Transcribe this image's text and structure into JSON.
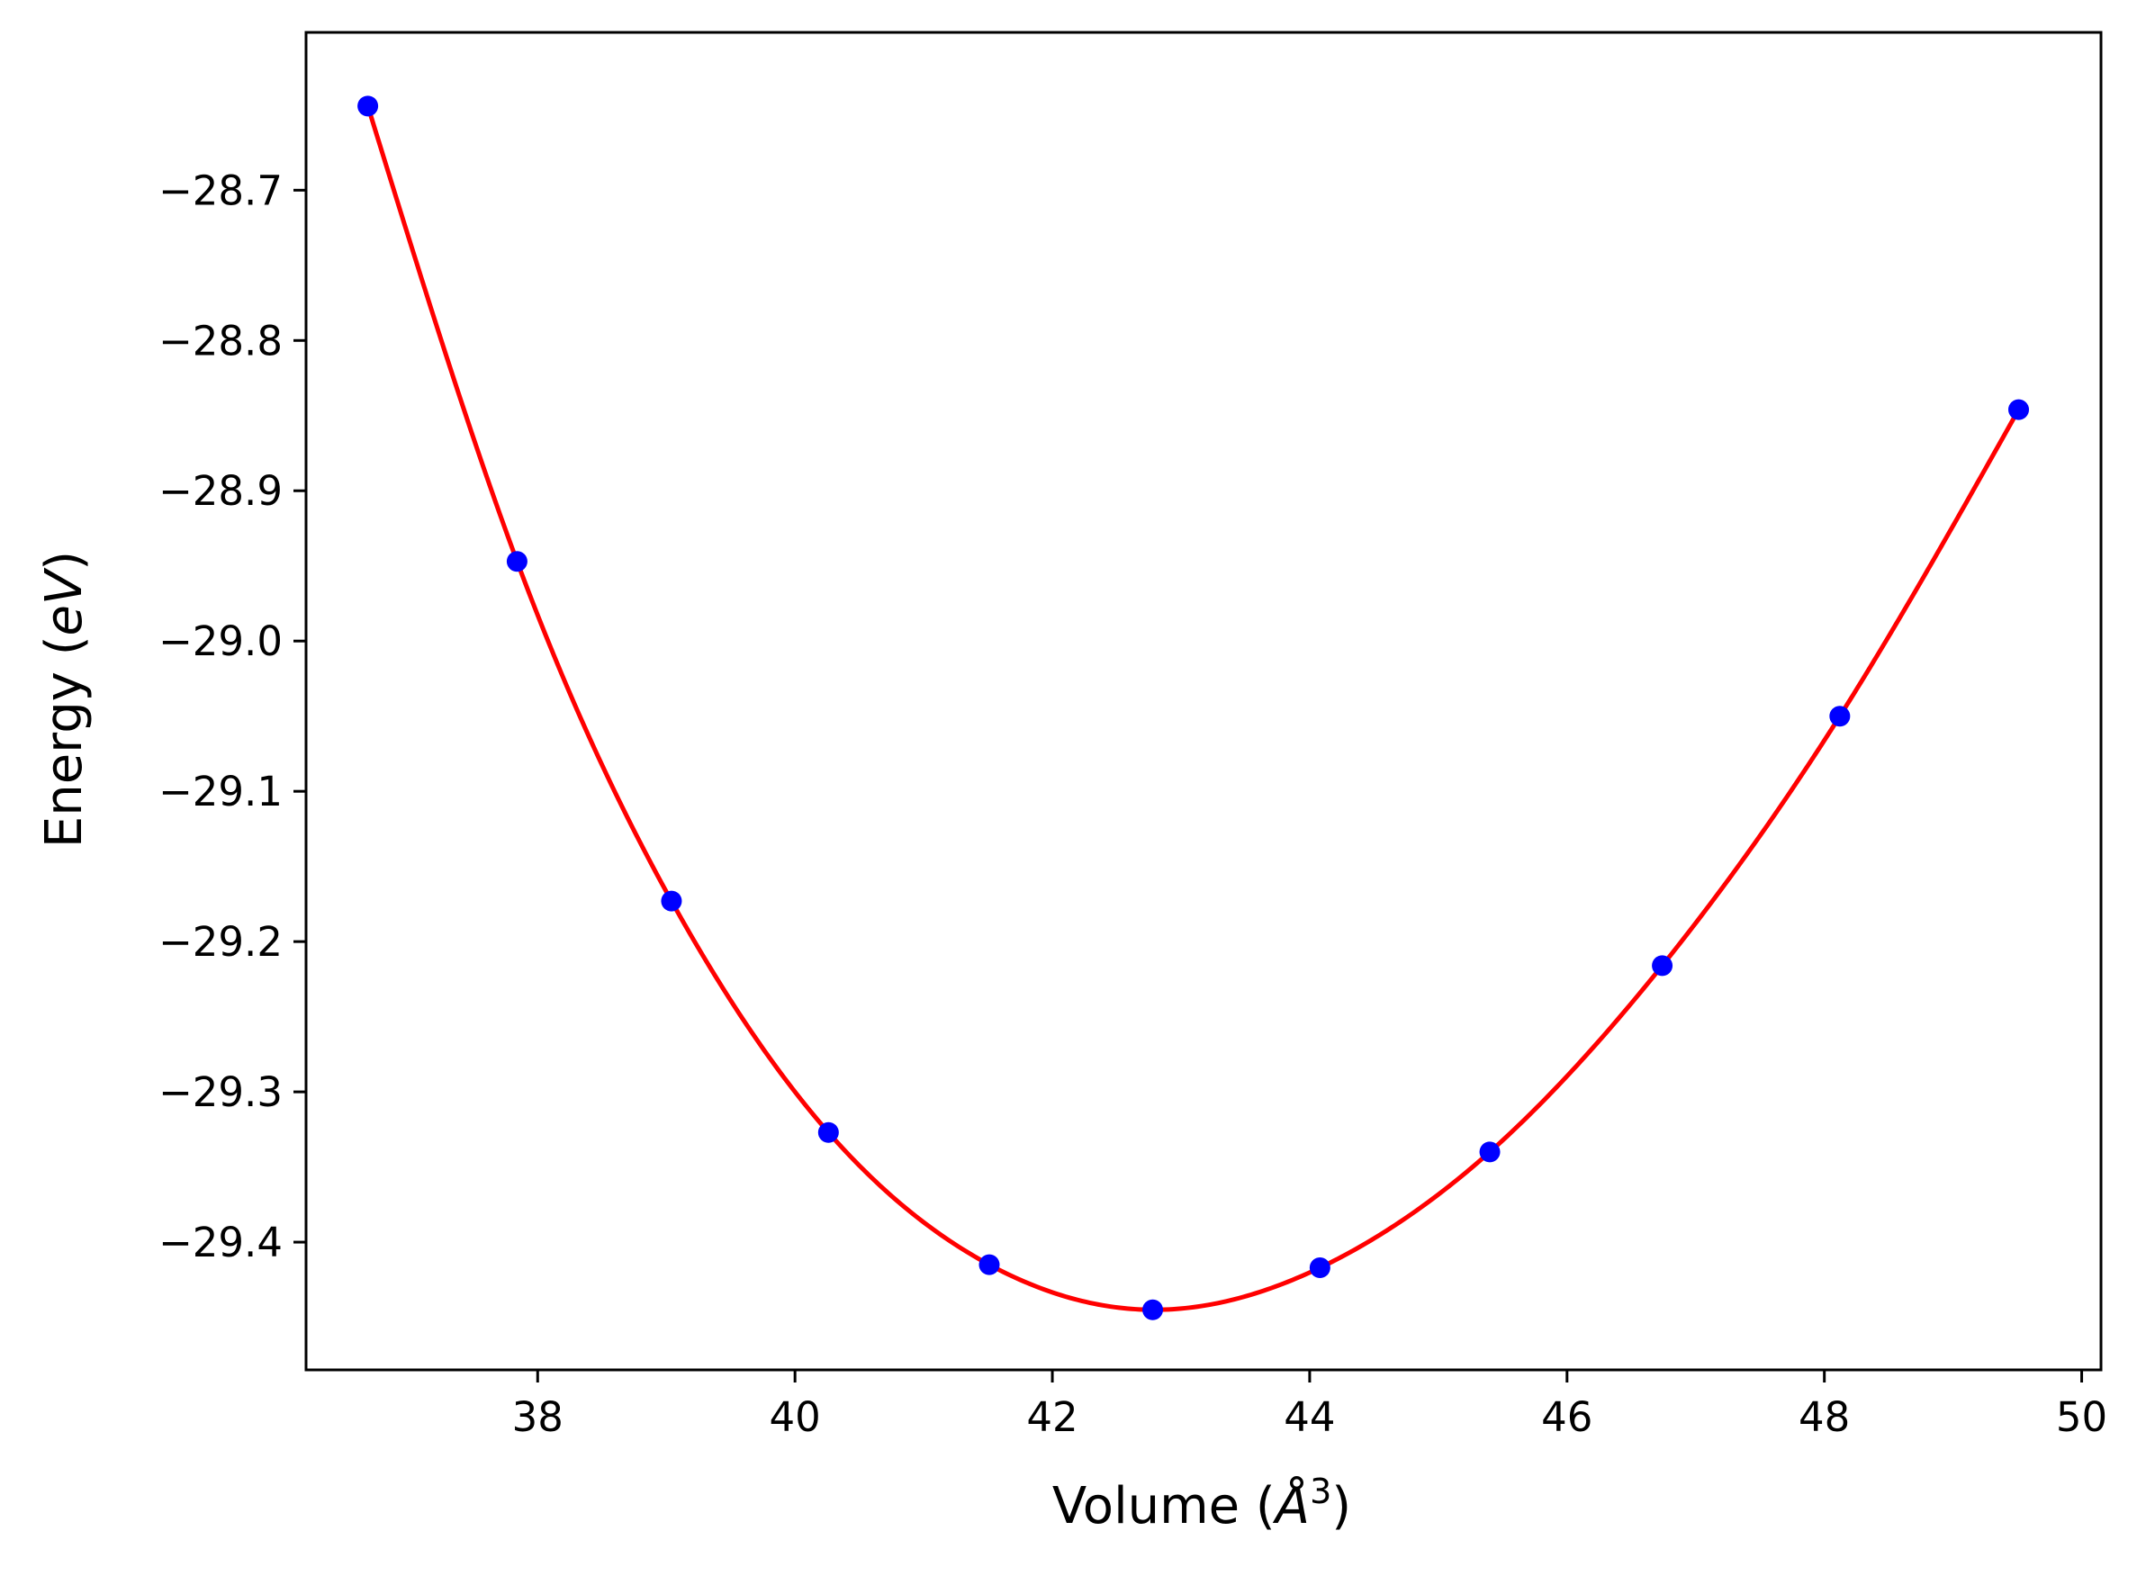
{
  "chart_data": {
    "type": "scatter",
    "title": "",
    "xlabel": "Volume (Å³)",
    "xlabel_parts": {
      "prefix": "Volume (",
      "symbol": "Å",
      "exponent": "3",
      "suffix": ")"
    },
    "ylabel": "Energy (eV)",
    "ylabel_parts": {
      "prefix": "Energy (",
      "unit": "eV",
      "suffix": ")"
    },
    "xlim": [
      36.2,
      50.15
    ],
    "ylim": [
      -29.485,
      -28.595
    ],
    "xticks": [
      38,
      40,
      42,
      44,
      46,
      48,
      50
    ],
    "xtick_labels": [
      "38",
      "40",
      "42",
      "44",
      "46",
      "48",
      "50"
    ],
    "yticks": [
      -28.7,
      -28.8,
      -28.9,
      -29.0,
      -29.1,
      -29.2,
      -29.3,
      -29.4
    ],
    "ytick_labels": [
      "−28.7",
      "−28.8",
      "−28.9",
      "−29.0",
      "−29.1",
      "−29.2",
      "−29.3",
      "−29.4"
    ],
    "grid": false,
    "legend": "none",
    "series": [
      {
        "kind": "points",
        "color": "#0000ff",
        "x": [
          36.68,
          37.84,
          39.04,
          40.26,
          41.51,
          42.78,
          44.08,
          45.4,
          46.74,
          48.12,
          49.51
        ],
        "y": [
          -28.644,
          -28.947,
          -29.173,
          -29.327,
          -29.415,
          -29.445,
          -29.417,
          -29.34,
          -29.216,
          -29.05,
          -28.846
        ]
      },
      {
        "kind": "fit_curve",
        "color": "#ff0000",
        "x": [
          36.68,
          37.84,
          39.04,
          40.26,
          41.51,
          42.78,
          44.08,
          45.4,
          46.74,
          48.12,
          49.51
        ],
        "y": [
          -28.644,
          -28.947,
          -29.173,
          -29.327,
          -29.415,
          -29.445,
          -29.417,
          -29.34,
          -29.216,
          -29.05,
          -28.846
        ]
      }
    ]
  }
}
